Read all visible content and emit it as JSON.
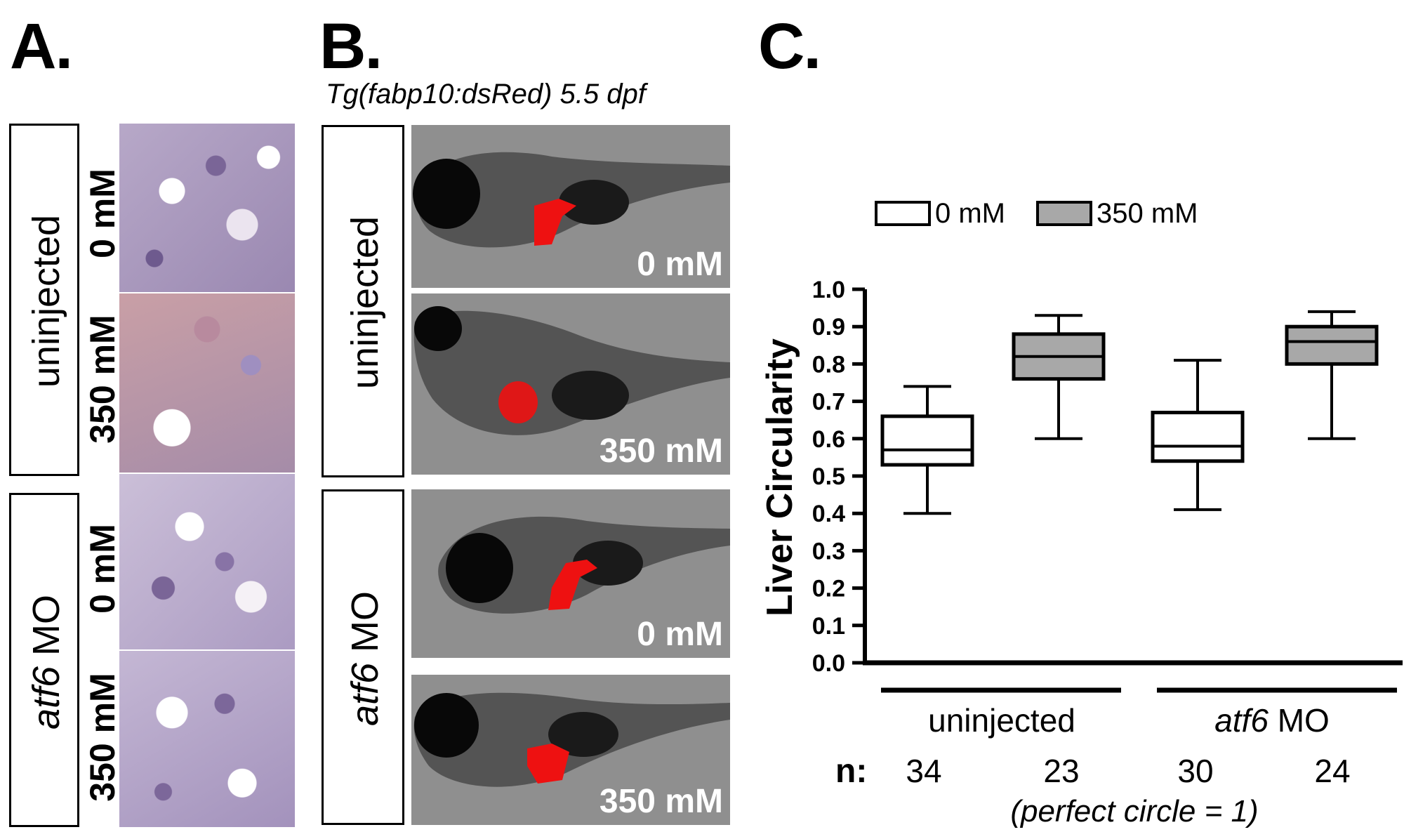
{
  "panels": {
    "a": {
      "letter": "A."
    },
    "b": {
      "letter": "B.",
      "subtitle": "Tg(fabp10:dsRed) 5.5 dpf"
    },
    "c": {
      "letter": "C."
    }
  },
  "groups": {
    "uninjected": "uninjected",
    "atf6_italic": "atf6",
    "atf6_rest": " MO"
  },
  "doses": {
    "zero": "0 mM",
    "high": "350 mM"
  },
  "chart_data": {
    "type": "box",
    "ylabel": "Liver Circularity",
    "ylim": [
      0.0,
      1.0
    ],
    "yticks": [
      "0.0",
      "0.1",
      "0.2",
      "0.3",
      "0.4",
      "0.5",
      "0.6",
      "0.7",
      "0.8",
      "0.9",
      "1.0"
    ],
    "legend": [
      {
        "name": "0 mM",
        "color": "#ffffff"
      },
      {
        "name": "350 mM",
        "color": "#a8a8a8"
      }
    ],
    "legend_position": "top",
    "groups": [
      {
        "label": "uninjected",
        "italic_part": "",
        "rest": "uninjected"
      },
      {
        "label": "atf6 MO",
        "italic_part": "atf6",
        "rest": " MO"
      }
    ],
    "boxes": [
      {
        "group": "uninjected",
        "dose": "0 mM",
        "min": 0.4,
        "q1": 0.53,
        "median": 0.57,
        "q3": 0.66,
        "max": 0.74,
        "n": "34"
      },
      {
        "group": "uninjected",
        "dose": "350 mM",
        "min": 0.6,
        "q1": 0.76,
        "median": 0.82,
        "q3": 0.88,
        "max": 0.93,
        "n": "23"
      },
      {
        "group": "atf6 MO",
        "dose": "0 mM",
        "min": 0.41,
        "q1": 0.54,
        "median": 0.58,
        "q3": 0.67,
        "max": 0.81,
        "n": "30"
      },
      {
        "group": "atf6 MO",
        "dose": "350 mM",
        "min": 0.6,
        "q1": 0.8,
        "median": 0.86,
        "q3": 0.9,
        "max": 0.94,
        "n": "24"
      }
    ],
    "n_label": "n:",
    "footnote": "(perfect circle = 1)"
  },
  "colors": {
    "box_fill_high": "#a8a8a8",
    "liver_red": "#ee1111",
    "tissue_purple": "#8a6fa0"
  }
}
